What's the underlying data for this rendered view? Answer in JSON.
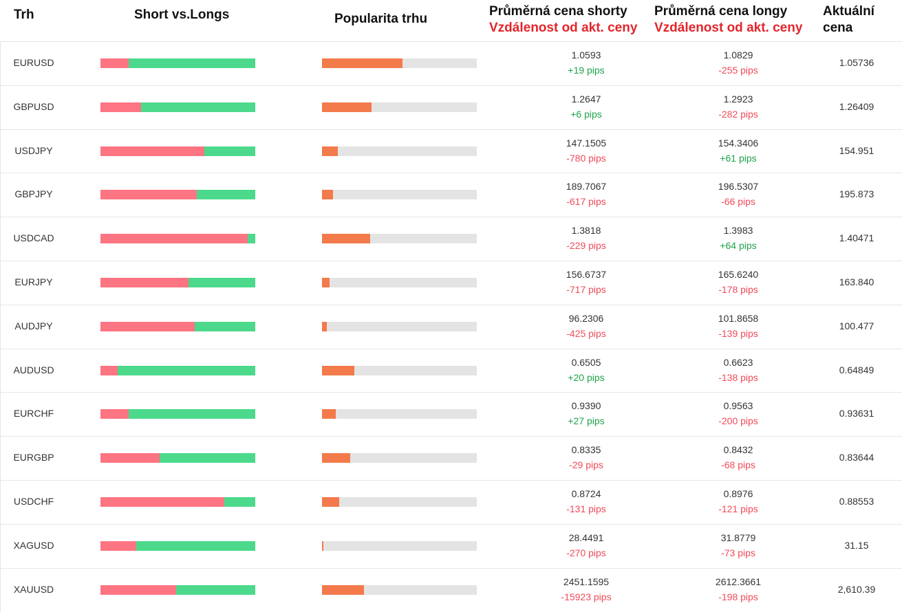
{
  "header": {
    "market": "Trh",
    "short_vs_longs": "Short vs.Longs",
    "popularity": "Popularita trhu",
    "avg_short_line1": "Průměrná cena shorty",
    "avg_short_line2": "Vzdálenost od akt. ceny",
    "avg_long_line1": "Průměrná cena longy",
    "avg_long_line2": "Vzdálenost od akt. ceny",
    "current_line1": "Aktuální",
    "current_line2": "cena"
  },
  "colors": {
    "short": "#fd7582",
    "long": "#4cd98c",
    "popularity": "#f37a4b",
    "popularity_track": "#e4e4e4",
    "positive": "#1fa24a",
    "negative": "#f04a58",
    "header_sub": "#e3252b"
  },
  "rows": [
    {
      "symbol": "EURUSD",
      "short_pct": 18,
      "popularity_pct": 52,
      "avg_short": "1.0593",
      "short_dist": "+19 pips",
      "short_dist_sign": "pos",
      "avg_long": "1.0829",
      "long_dist": "-255 pips",
      "long_dist_sign": "neg",
      "current": "1.05736"
    },
    {
      "symbol": "GBPUSD",
      "short_pct": 26,
      "popularity_pct": 32,
      "avg_short": "1.2647",
      "short_dist": "+6 pips",
      "short_dist_sign": "pos",
      "avg_long": "1.2923",
      "long_dist": "-282 pips",
      "long_dist_sign": "neg",
      "current": "1.26409"
    },
    {
      "symbol": "USDJPY",
      "short_pct": 67,
      "popularity_pct": 10,
      "avg_short": "147.1505",
      "short_dist": "-780 pips",
      "short_dist_sign": "neg",
      "avg_long": "154.3406",
      "long_dist": "+61 pips",
      "long_dist_sign": "pos",
      "current": "154.951"
    },
    {
      "symbol": "GBPJPY",
      "short_pct": 62,
      "popularity_pct": 7,
      "avg_short": "189.7067",
      "short_dist": "-617 pips",
      "short_dist_sign": "neg",
      "avg_long": "196.5307",
      "long_dist": "-66 pips",
      "long_dist_sign": "neg",
      "current": "195.873"
    },
    {
      "symbol": "USDCAD",
      "short_pct": 95,
      "popularity_pct": 31,
      "avg_short": "1.3818",
      "short_dist": "-229 pips",
      "short_dist_sign": "neg",
      "avg_long": "1.3983",
      "long_dist": "+64 pips",
      "long_dist_sign": "pos",
      "current": "1.40471"
    },
    {
      "symbol": "EURJPY",
      "short_pct": 57,
      "popularity_pct": 5,
      "avg_short": "156.6737",
      "short_dist": "-717 pips",
      "short_dist_sign": "neg",
      "avg_long": "165.6240",
      "long_dist": "-178 pips",
      "long_dist_sign": "neg",
      "current": "163.840"
    },
    {
      "symbol": "AUDJPY",
      "short_pct": 61,
      "popularity_pct": 3,
      "avg_short": "96.2306",
      "short_dist": "-425 pips",
      "short_dist_sign": "neg",
      "avg_long": "101.8658",
      "long_dist": "-139 pips",
      "long_dist_sign": "neg",
      "current": "100.477"
    },
    {
      "symbol": "AUDUSD",
      "short_pct": 11,
      "popularity_pct": 21,
      "avg_short": "0.6505",
      "short_dist": "+20 pips",
      "short_dist_sign": "pos",
      "avg_long": "0.6623",
      "long_dist": "-138 pips",
      "long_dist_sign": "neg",
      "current": "0.64849"
    },
    {
      "symbol": "EURCHF",
      "short_pct": 18,
      "popularity_pct": 9,
      "avg_short": "0.9390",
      "short_dist": "+27 pips",
      "short_dist_sign": "pos",
      "avg_long": "0.9563",
      "long_dist": "-200 pips",
      "long_dist_sign": "neg",
      "current": "0.93631"
    },
    {
      "symbol": "EURGBP",
      "short_pct": 38,
      "popularity_pct": 18,
      "avg_short": "0.8335",
      "short_dist": "-29 pips",
      "short_dist_sign": "neg",
      "avg_long": "0.8432",
      "long_dist": "-68 pips",
      "long_dist_sign": "neg",
      "current": "0.83644"
    },
    {
      "symbol": "USDCHF",
      "short_pct": 80,
      "popularity_pct": 11,
      "avg_short": "0.8724",
      "short_dist": "-131 pips",
      "short_dist_sign": "neg",
      "avg_long": "0.8976",
      "long_dist": "-121 pips",
      "long_dist_sign": "neg",
      "current": "0.88553"
    },
    {
      "symbol": "XAGUSD",
      "short_pct": 23,
      "popularity_pct": 1,
      "avg_short": "28.4491",
      "short_dist": "-270 pips",
      "short_dist_sign": "neg",
      "avg_long": "31.8779",
      "long_dist": "-73 pips",
      "long_dist_sign": "neg",
      "current": "31.15"
    },
    {
      "symbol": "XAUUSD",
      "short_pct": 49,
      "popularity_pct": 27,
      "avg_short": "2451.1595",
      "short_dist": "-15923 pips",
      "short_dist_sign": "neg",
      "avg_long": "2612.3661",
      "long_dist": "-198 pips",
      "long_dist_sign": "neg",
      "current": "2,610.39"
    }
  ]
}
